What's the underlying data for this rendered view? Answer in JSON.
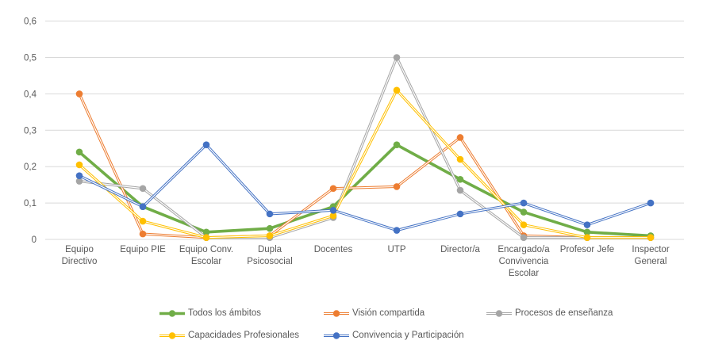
{
  "chart_data": {
    "type": "line",
    "title": "",
    "xlabel": "",
    "ylabel": "",
    "categories": [
      "Equipo Directivo",
      "Equipo PIE",
      "Equipo Conv. Escolar",
      "Dupla Psicosocial",
      "Docentes",
      "UTP",
      "Director/a",
      "Encargado/a Convivencia Escolar",
      "Profesor Jefe",
      "Inspector General"
    ],
    "series": [
      {
        "name": "Todos los ámbitos",
        "color": "#70AD47",
        "line_style": "solid",
        "values": [
          0.24,
          0.09,
          0.02,
          0.03,
          0.09,
          0.26,
          0.165,
          0.075,
          0.02,
          0.01
        ]
      },
      {
        "name": "Visión compartida",
        "color": "#ED7D31",
        "line_style": "double",
        "values": [
          0.4,
          0.015,
          0.005,
          0.01,
          0.14,
          0.145,
          0.28,
          0.01,
          0.005,
          0.005
        ]
      },
      {
        "name": "Procesos de enseñanza",
        "color": "#A5A5A5",
        "line_style": "double",
        "values": [
          0.16,
          0.14,
          0.005,
          0.005,
          0.06,
          0.5,
          0.135,
          0.005,
          0.005,
          0.005
        ]
      },
      {
        "name": "Capacidades Profesionales",
        "color": "#FFC000",
        "line_style": "double",
        "values": [
          0.205,
          0.05,
          0.005,
          0.01,
          0.065,
          0.41,
          0.22,
          0.04,
          0.005,
          0.005
        ]
      },
      {
        "name": "Convivencia y Participación",
        "color": "#4472C4",
        "line_style": "double",
        "values": [
          0.175,
          0.09,
          0.26,
          0.07,
          0.08,
          0.025,
          0.07,
          0.1,
          0.04,
          0.1
        ]
      }
    ],
    "y_axis": {
      "min": 0,
      "max": 0.6,
      "step": 0.1,
      "tick_labels": [
        "0",
        "0,1",
        "0,2",
        "0,3",
        "0,4",
        "0,5",
        "0,6"
      ],
      "decimal_separator": ","
    },
    "grid": true,
    "legend_position": "bottom",
    "colors": {
      "background": "#FFFFFF",
      "gridline": "#D9D9D9",
      "axis_text": "#595959"
    }
  }
}
